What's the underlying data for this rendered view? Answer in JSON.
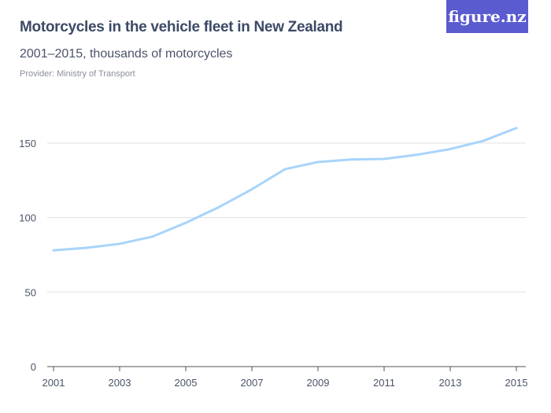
{
  "header": {
    "title": "Motorcycles in the vehicle fleet in New Zealand",
    "subtitle": "2001–2015, thousands of motorcycles",
    "provider": "Provider: Ministry of Transport",
    "logo": "figure.nz"
  },
  "colors": {
    "line": "#a8d4fb",
    "logo_bg": "#5b5bd0",
    "grid": "#e0e0e0"
  },
  "chart_data": {
    "type": "line",
    "title": "Motorcycles in the vehicle fleet in New Zealand",
    "subtitle": "2001–2015, thousands of motorcycles",
    "x": [
      2001,
      2002,
      2003,
      2004,
      2005,
      2006,
      2007,
      2008,
      2009,
      2010,
      2011,
      2012,
      2013,
      2014,
      2015
    ],
    "series": [
      {
        "values": [
          78.0,
          79.7,
          82.4,
          87.3,
          96.5,
          107.0,
          119.0,
          132.5,
          137.3,
          139.0,
          139.4,
          142.2,
          146.0,
          151.5,
          160.1
        ]
      }
    ],
    "x_ticks": [
      "2001",
      "2003",
      "2005",
      "2007",
      "2009",
      "2011",
      "2013",
      "2015"
    ],
    "y_ticks": [
      "0",
      "50",
      "100",
      "150"
    ],
    "ylim": [
      0,
      150
    ],
    "grid": true
  }
}
